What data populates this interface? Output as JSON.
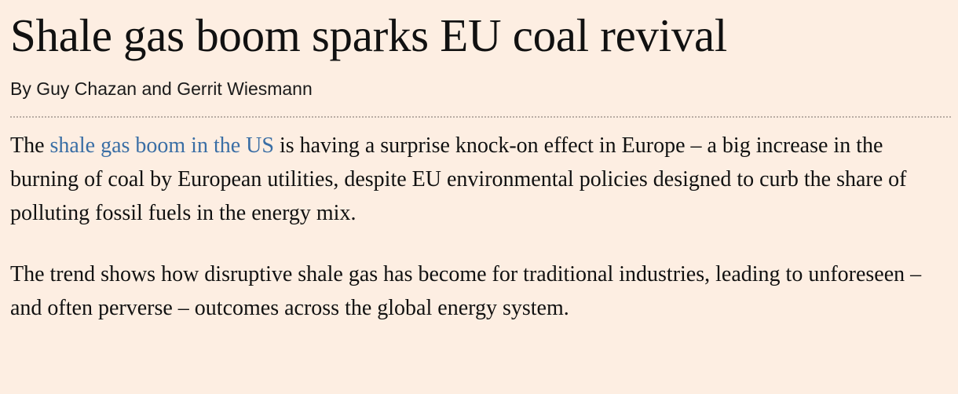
{
  "article": {
    "headline": "Shale gas boom sparks EU coal revival",
    "byline": "By Guy Chazan and Gerrit Wiesmann",
    "paragraph1": {
      "before_link": "The ",
      "link_text": "shale gas boom in the US",
      "after_link": " is having a surprise knock-on effect in Europe – a big increase in the burning of coal by European utilities, despite EU environmental policies designed to curb the share of polluting fossil fuels in the energy mix."
    },
    "paragraph2": "The trend shows how disruptive shale gas has become for traditional industries, leading to unforeseen – and often perverse – outcomes across the global energy system."
  },
  "colors": {
    "background": "#fdeee2",
    "link": "#3a6ea5",
    "text": "#111111"
  }
}
